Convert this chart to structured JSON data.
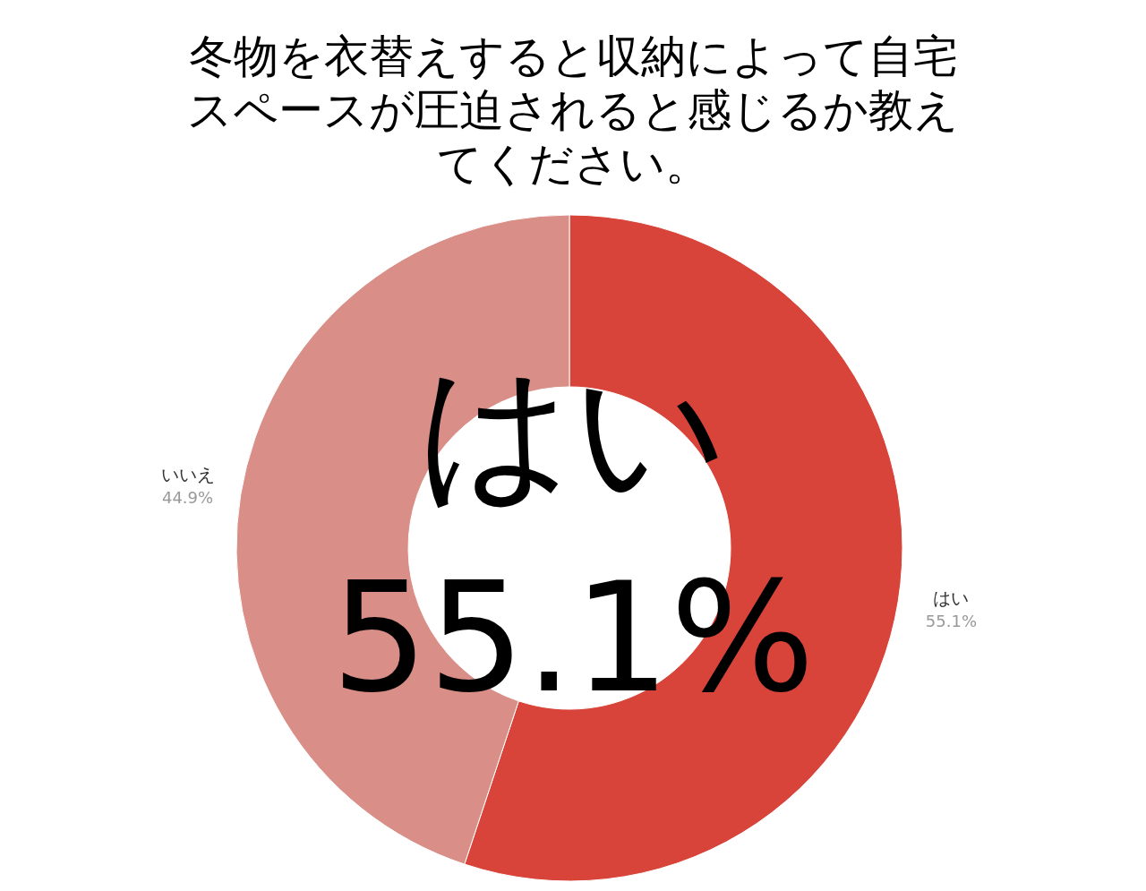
{
  "chart_data": {
    "type": "donut",
    "title": "冬物を衣替えすると収納によって自宅スペースが圧迫されると感じるか教えてください。",
    "categories": [
      "はい",
      "いいえ"
    ],
    "values": [
      55.1,
      44.9
    ],
    "colors": [
      "#d9443a",
      "#d98e88"
    ],
    "value_labels": [
      "55.1%",
      "44.9%"
    ],
    "annotations": [
      "はい",
      "55.1%"
    ]
  }
}
